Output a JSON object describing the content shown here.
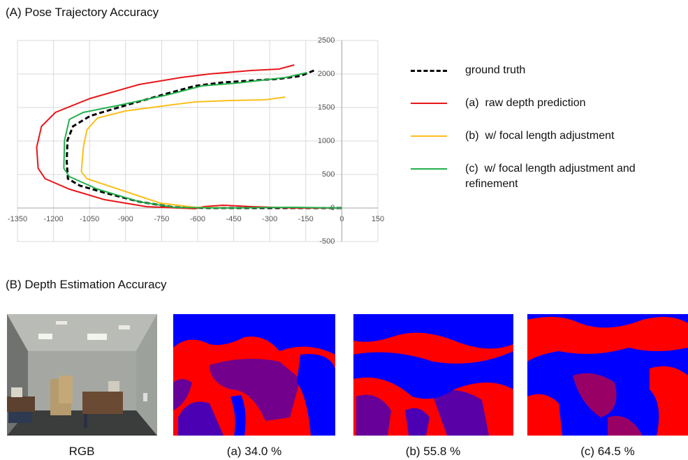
{
  "panel_a_title": "(A) Pose Trajectory Accuracy",
  "chart_data": {
    "type": "line",
    "grid": true,
    "xlim": [
      -1350,
      150
    ],
    "ylim": [
      -500,
      2500
    ],
    "xticks": [
      -1350,
      -1200,
      -1050,
      -900,
      -750,
      -600,
      -450,
      -300,
      -150,
      0,
      150
    ],
    "yticks": [
      -500,
      0,
      500,
      1000,
      1500,
      2000,
      2500
    ],
    "series": [
      {
        "name": "ground truth",
        "color": "#000000",
        "dashed": true,
        "x": [
          -116,
          -174,
          -262,
          -494,
          -610,
          -727,
          -901,
          -1047,
          -1119,
          -1142,
          -1145,
          -1140,
          -1090,
          -988,
          -843,
          -698,
          -552,
          -262,
          0
        ],
        "values": [
          2052,
          1969,
          1927,
          1875,
          1823,
          1708,
          1531,
          1375,
          1219,
          1010,
          698,
          438,
          333,
          229,
          94,
          10,
          0,
          0,
          0
        ]
      },
      {
        "name": "(a)  raw depth prediction",
        "color": "#e8161a",
        "dashed": false,
        "x": [
          -198,
          -262,
          -378,
          -552,
          -669,
          -843,
          -1047,
          -1192,
          -1250,
          -1270,
          -1264,
          -1235,
          -1134,
          -988,
          -814,
          -610,
          -575,
          -494,
          -378,
          -203,
          0
        ],
        "values": [
          2135,
          2073,
          2052,
          2000,
          1948,
          1844,
          1635,
          1427,
          1219,
          906,
          594,
          438,
          281,
          125,
          21,
          -10,
          21,
          42,
          21,
          0,
          0
        ]
      },
      {
        "name": "(b)  w/ focal length adjustment",
        "color": "#fcbf1b",
        "dashed": false,
        "x": [
          -235,
          -320,
          -465,
          -610,
          -727,
          -901,
          -1017,
          -1061,
          -1076,
          -1084,
          -1061,
          -930,
          -756,
          -610,
          -465
        ],
        "values": [
          1656,
          1615,
          1604,
          1583,
          1531,
          1448,
          1344,
          1167,
          906,
          542,
          438,
          281,
          73,
          10,
          0
        ]
      },
      {
        "name": "(c)  w/ focal length adjustment and refinement",
        "color": "#21b04b",
        "dashed": false,
        "x": [
          -145,
          -233,
          -436,
          -581,
          -727,
          -930,
          -1076,
          -1134,
          -1154,
          -1157,
          -1134,
          -1017,
          -843,
          -698,
          -494,
          -203,
          0
        ],
        "values": [
          2021,
          1948,
          1865,
          1823,
          1688,
          1531,
          1427,
          1323,
          1010,
          594,
          469,
          281,
          94,
          10,
          0,
          10,
          0
        ]
      }
    ]
  },
  "panel_b": {
    "title": "(B) Depth Estimation Accuracy",
    "captions": [
      "RGB",
      "(a) 34.0 %",
      "(b) 55.8 %",
      "(c) 64.5 %"
    ]
  }
}
